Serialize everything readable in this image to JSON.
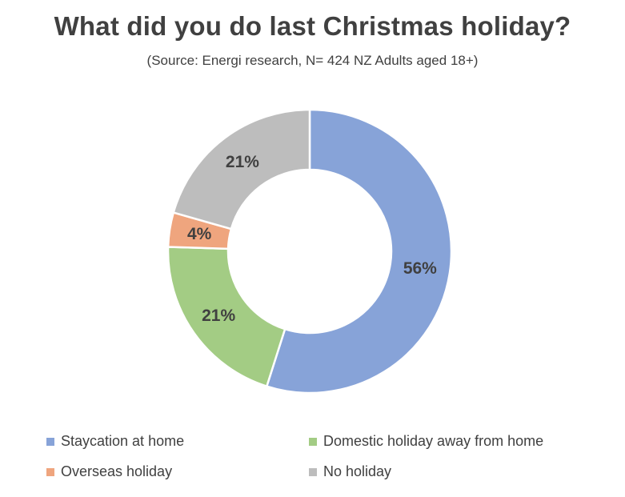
{
  "chart_data": {
    "type": "pie",
    "variant": "donut",
    "title": "What did you do last Christmas holiday?",
    "subtitle": "(Source: Energi research, N= 424 NZ Adults aged 18+)",
    "legend_position": "bottom",
    "slices": [
      {
        "label": "Staycation at home",
        "value": 56,
        "display": "56%",
        "color": "#87A3D8"
      },
      {
        "label": "Domestic holiday away from home",
        "value": 21,
        "display": "21%",
        "color": "#A3CC84"
      },
      {
        "label": "Overseas holiday",
        "value": 4,
        "display": "4%",
        "color": "#EFA57E"
      },
      {
        "label": "No holiday",
        "value": 21,
        "display": "21%",
        "color": "#BDBDBD"
      }
    ]
  }
}
